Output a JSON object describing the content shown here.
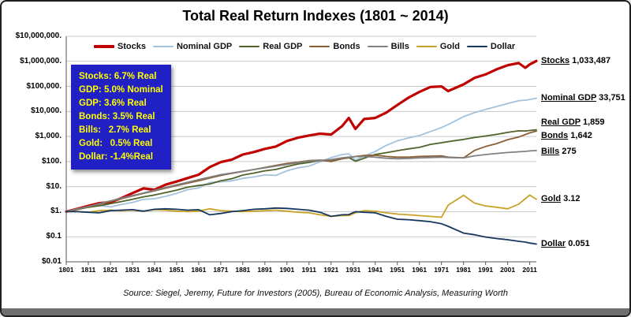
{
  "source": "Source: Siegel, Jeremy, Future for Investors (2005), Bureau of Economic Analysis, Measuring Worth",
  "annotation": {
    "bg": "#2020C4",
    "text_color": "#FFFF00",
    "lines": [
      "Stocks: 6.7% Real",
      "GDP: 5.0% Nominal",
      "GDP: 3.6% Real",
      "Bonds: 3.5% Real",
      "Bills:   2.7% Real",
      "Gold:   0.5% Real",
      "Dollar: -1.4%Real"
    ]
  },
  "chart_data": {
    "type": "line",
    "title": "Total Real Return Indexes (1801 ~ 2014)",
    "y_scale": "log",
    "ylim": [
      0.01,
      10000000
    ],
    "xlim": [
      1801,
      2014
    ],
    "grid": "horizontal",
    "legend_position": "top",
    "y_ticks": [
      "$10,000,000.",
      "$1,000,000.",
      "$100,000.",
      "$10,000.",
      "$1,000.",
      "$100.",
      "$10.",
      "$1.",
      "$0.1",
      "$0.01"
    ],
    "y_tick_values": [
      10000000,
      1000000,
      100000,
      10000,
      1000,
      100,
      10,
      1,
      0.1,
      0.01
    ],
    "x_ticks": [
      1801,
      1811,
      1821,
      1831,
      1841,
      1851,
      1861,
      1871,
      1881,
      1891,
      1901,
      1911,
      1921,
      1931,
      1941,
      1951,
      1961,
      1971,
      1981,
      1991,
      2001,
      2011
    ],
    "x": [
      1801,
      1806,
      1811,
      1816,
      1821,
      1826,
      1831,
      1836,
      1841,
      1846,
      1851,
      1856,
      1861,
      1866,
      1871,
      1876,
      1881,
      1886,
      1891,
      1896,
      1901,
      1906,
      1911,
      1916,
      1921,
      1926,
      1929,
      1932,
      1936,
      1941,
      1946,
      1951,
      1956,
      1961,
      1966,
      1971,
      1974,
      1981,
      1986,
      1991,
      1996,
      2001,
      2006,
      2009,
      2011,
      2014
    ],
    "series": [
      {
        "name": "Stocks",
        "color": "#C00000",
        "width": 3.2,
        "label_dy": 0,
        "end_value": "1,033,487",
        "values": [
          1,
          1.3,
          1.7,
          2.2,
          2.4,
          3.5,
          5.5,
          8.5,
          7.5,
          12,
          16,
          22,
          30,
          60,
          95,
          120,
          190,
          240,
          320,
          400,
          660,
          900,
          1100,
          1300,
          1200,
          2600,
          5500,
          2000,
          5000,
          5500,
          9000,
          18000,
          35000,
          60000,
          95000,
          100000,
          65000,
          120000,
          220000,
          300000,
          480000,
          700000,
          850000,
          550000,
          750000,
          1033487
        ]
      },
      {
        "name": "Nominal GDP",
        "color": "#A3C2DC",
        "width": 1.8,
        "label_dy": 0,
        "end_value": "33,751",
        "values": [
          1,
          1.26,
          1.5,
          1.75,
          1.55,
          1.94,
          2.33,
          3.1,
          3.3,
          4.1,
          5.4,
          7.6,
          8.9,
          14.6,
          15.5,
          17.1,
          21.4,
          24.3,
          29.1,
          28.2,
          42.7,
          56.3,
          66,
          97,
          143.7,
          190,
          204,
          114.6,
          165,
          250,
          441,
          674,
          874,
          1093,
          1583,
          2266,
          3000,
          6227,
          8913,
          11988,
          15728,
          20625,
          26823,
          28056,
          30132,
          33751
        ]
      },
      {
        "name": "Real GDP",
        "color": "#4F6228",
        "width": 1.8,
        "label_dy": -9,
        "end_value": "1,859",
        "values": [
          1,
          1.21,
          1.5,
          1.73,
          2.08,
          2.54,
          3.12,
          3.93,
          4.62,
          5.77,
          7.27,
          9.47,
          11.1,
          12.7,
          17,
          20.8,
          28.9,
          34.6,
          42.7,
          48.5,
          63.5,
          79.7,
          92.4,
          110.9,
          106.2,
          130.5,
          145.5,
          102.8,
          135.1,
          191.7,
          226.3,
          272.5,
          319.9,
          368.4,
          485,
          563.5,
          625.9,
          764.4,
          907.6,
          1046,
          1219,
          1464,
          1687,
          1665,
          1734,
          1859
        ]
      },
      {
        "name": "Bonds",
        "color": "#8B5E34",
        "width": 1.8,
        "label_dy": 6,
        "end_value": "1,642",
        "values": [
          1,
          1.25,
          1.6,
          2,
          2.6,
          3.3,
          4.2,
          5.4,
          6.8,
          8.7,
          11,
          13.7,
          17,
          22,
          28,
          34,
          40,
          48,
          58,
          70,
          84,
          95,
          110,
          115,
          100,
          130,
          140,
          160,
          175,
          180,
          160,
          150,
          150,
          160,
          165,
          170,
          150,
          140,
          280,
          400,
          520,
          750,
          950,
          1200,
          1400,
          1642
        ]
      },
      {
        "name": "Bills",
        "color": "#808080",
        "width": 1.8,
        "label_dy": 2,
        "end_value": "275",
        "values": [
          1,
          1.3,
          1.6,
          2.1,
          2.7,
          3.5,
          4.4,
          5.6,
          7.2,
          9.2,
          11.8,
          15,
          19,
          24,
          30,
          35,
          41,
          48,
          56,
          66,
          77,
          90,
          105,
          112,
          120,
          140,
          150,
          158,
          160,
          150,
          135,
          130,
          133,
          140,
          145,
          150,
          145,
          140,
          170,
          190,
          210,
          230,
          245,
          255,
          265,
          275
        ]
      },
      {
        "name": "Gold",
        "color": "#C9A227",
        "width": 1.8,
        "label_dy": 0,
        "end_value": "3.12",
        "values": [
          1,
          1,
          0.95,
          1.1,
          1.15,
          1.1,
          1.15,
          1.05,
          1.2,
          1.15,
          1.05,
          1,
          1.05,
          1.3,
          1.1,
          1.05,
          1,
          1.05,
          1.1,
          1.15,
          1.05,
          0.95,
          0.9,
          0.75,
          0.65,
          0.7,
          0.7,
          0.9,
          1.1,
          1.05,
          0.9,
          0.8,
          0.75,
          0.7,
          0.65,
          0.6,
          1.8,
          4.5,
          2.2,
          1.7,
          1.5,
          1.3,
          2,
          3.3,
          4.6,
          3.12
        ]
      },
      {
        "name": "Dollar",
        "color": "#17375E",
        "width": 1.8,
        "label_dy": 0,
        "end_value": "0.051",
        "values": [
          1,
          1,
          0.95,
          0.9,
          1.1,
          1.15,
          1.2,
          1.05,
          1.25,
          1.3,
          1.25,
          1.15,
          1.2,
          0.75,
          0.85,
          1,
          1.1,
          1.25,
          1.3,
          1.4,
          1.35,
          1.25,
          1.15,
          0.95,
          0.65,
          0.75,
          0.77,
          1,
          0.95,
          0.9,
          0.65,
          0.5,
          0.48,
          0.44,
          0.4,
          0.33,
          0.26,
          0.14,
          0.12,
          0.097,
          0.085,
          0.076,
          0.066,
          0.061,
          0.056,
          0.051
        ]
      }
    ]
  }
}
